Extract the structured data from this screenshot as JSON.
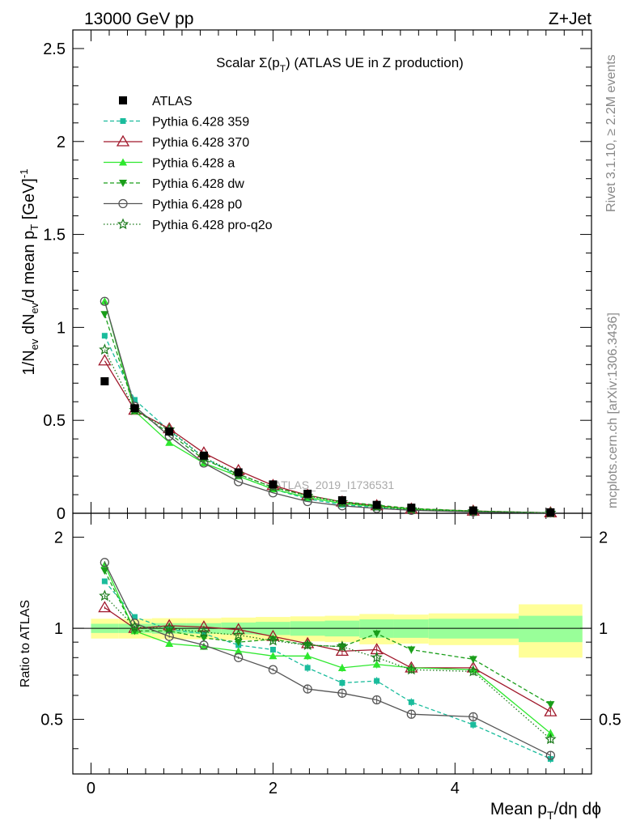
{
  "header": {
    "left": "13000 GeV pp",
    "right": "Z+Jet"
  },
  "side": {
    "rivet": "Rivet 3.1.10, ≥ 2.2M events",
    "mcplots": "mcplots.cern.ch [arXiv:1306.3436]"
  },
  "watermark": "ATLAS_2019_I1736531",
  "colors": {
    "ATLAS": "#000000",
    "p359": "#1abc9c",
    "p370": "#a0182b",
    "pa": "#2ee82e",
    "pdw": "#1a9e1a",
    "pp0": "#555555",
    "pq2o": "#1a7a1a"
  },
  "chart_data": {
    "type": "line",
    "title_prefix": "Scalar Σ(p",
    "title_sub": "T",
    "title_suffix": ") (ATLAS UE in Z production)",
    "ylabel": "1/N_ev dN_ev/d mean p_T [GeV]^-1",
    "ylabel_ratio": "Ratio to ATLAS",
    "xlabel": "Mean p_T/dη dφ",
    "xlim": [
      -0.2,
      5.5
    ],
    "ylim": [
      0,
      2.6
    ],
    "ratio_ylim": [
      0.33,
      2.4
    ],
    "x_ticks": [
      "0",
      "2",
      "4"
    ],
    "y_ticks": [
      "0",
      "0.5",
      "1",
      "1.5",
      "2",
      "2.5"
    ],
    "ratio_ticks": [
      "0.5",
      "1",
      "2"
    ],
    "x": [
      0.15,
      0.48,
      0.86,
      1.24,
      1.62,
      2.0,
      2.38,
      2.76,
      3.14,
      3.52,
      4.2,
      5.05
    ],
    "band_edges": [
      0.0,
      0.3,
      0.67,
      1.05,
      1.43,
      1.81,
      2.19,
      2.57,
      2.95,
      3.33,
      3.71,
      4.7,
      5.4
    ],
    "band_outer": [
      0.075,
      0.075,
      0.08,
      0.08,
      0.085,
      0.09,
      0.095,
      0.1,
      0.115,
      0.11,
      0.12,
      0.2
    ],
    "band_inner": [
      0.035,
      0.035,
      0.04,
      0.04,
      0.045,
      0.05,
      0.055,
      0.06,
      0.07,
      0.07,
      0.075,
      0.1
    ],
    "legend": [
      {
        "key": "ATLAS",
        "label": "ATLAS"
      },
      {
        "key": "p359",
        "label": "Pythia 6.428 359"
      },
      {
        "key": "p370",
        "label": "Pythia 6.428 370"
      },
      {
        "key": "pa",
        "label": "Pythia 6.428 a"
      },
      {
        "key": "pdw",
        "label": "Pythia 6.428 dw"
      },
      {
        "key": "pp0",
        "label": "Pythia 6.428 p0"
      },
      {
        "key": "pq2o",
        "label": "Pythia 6.428 pro-q2o"
      }
    ],
    "series": [
      {
        "key": "ATLAS",
        "name": "ATLAS",
        "marker": "square",
        "dash": "none",
        "values": [
          0.71,
          0.565,
          0.44,
          0.31,
          0.22,
          0.155,
          0.105,
          0.07,
          0.045,
          0.03,
          0.015,
          0.005
        ],
        "ratio": [
          1,
          1,
          1,
          1,
          1,
          1,
          1,
          1,
          1,
          1,
          1,
          1
        ]
      },
      {
        "key": "p359",
        "name": "Pythia 6.428 359",
        "marker": "smallsquare",
        "dash": "5,3",
        "values": [
          0.955,
          0.61,
          0.445,
          0.3,
          0.2,
          0.13,
          0.077,
          0.046,
          0.03,
          0.017,
          0.0072,
          0.0018
        ],
        "ratio": [
          1.43,
          1.09,
          0.99,
          0.96,
          0.88,
          0.85,
          0.74,
          0.66,
          0.67,
          0.57,
          0.48,
          0.37
        ]
      },
      {
        "key": "p370",
        "name": "Pythia 6.428 370",
        "marker": "triangle-open",
        "dash": "none",
        "values": [
          0.82,
          0.555,
          0.455,
          0.325,
          0.23,
          0.15,
          0.097,
          0.061,
          0.041,
          0.023,
          0.012,
          0.0028
        ],
        "ratio": [
          1.17,
          1.0,
          1.02,
          1.01,
          0.99,
          0.94,
          0.89,
          0.84,
          0.85,
          0.74,
          0.74,
          0.53
        ]
      },
      {
        "key": "pa",
        "name": "Pythia 6.428 a",
        "marker": "triangle",
        "dash": "none",
        "values": [
          1.14,
          0.55,
          0.38,
          0.27,
          0.2,
          0.13,
          0.085,
          0.053,
          0.036,
          0.022,
          0.011,
          0.0024
        ],
        "ratio": [
          1.62,
          0.98,
          0.89,
          0.87,
          0.84,
          0.81,
          0.81,
          0.74,
          0.76,
          0.74,
          0.73,
          0.45
        ]
      },
      {
        "key": "pdw",
        "name": "Pythia 6.428 dw",
        "marker": "triangle-down",
        "dash": "5,3",
        "values": [
          1.07,
          0.56,
          0.43,
          0.29,
          0.21,
          0.14,
          0.095,
          0.062,
          0.044,
          0.026,
          0.012,
          0.0028
        ],
        "ratio": [
          1.55,
          0.98,
          0.98,
          0.93,
          0.9,
          0.92,
          0.88,
          0.87,
          0.96,
          0.85,
          0.79,
          0.56
        ]
      },
      {
        "key": "pp0",
        "name": "Pythia 6.428 p0",
        "marker": "circle-open",
        "dash": "none",
        "values": [
          1.14,
          0.575,
          0.415,
          0.27,
          0.17,
          0.11,
          0.063,
          0.04,
          0.026,
          0.016,
          0.0075,
          0.002
        ],
        "ratio": [
          1.65,
          1.04,
          0.94,
          0.88,
          0.8,
          0.73,
          0.63,
          0.61,
          0.58,
          0.52,
          0.51,
          0.38
        ]
      },
      {
        "key": "pq2o",
        "name": "Pythia 6.428 pro-q2o",
        "marker": "star",
        "dash": "1.5,2.5",
        "values": [
          0.88,
          0.555,
          0.45,
          0.3,
          0.21,
          0.14,
          0.093,
          0.059,
          0.036,
          0.021,
          0.0105,
          0.0022
        ],
        "ratio": [
          1.28,
          1.01,
          1.0,
          0.97,
          0.95,
          0.91,
          0.88,
          0.87,
          0.8,
          0.73,
          0.72,
          0.43
        ]
      }
    ]
  }
}
